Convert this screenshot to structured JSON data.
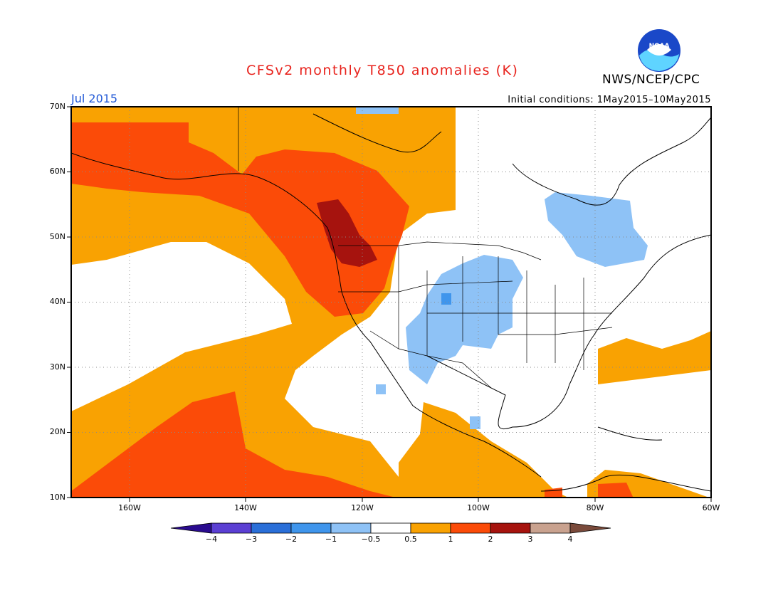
{
  "title": "CFSv2 monthly T850 anomalies (K)",
  "organization": "NWS/NCEP/CPC",
  "valid_period": "Jul 2015",
  "initial_conditions": "Initial conditions: 1May2015–10May2015",
  "logo_text": "NOAA",
  "lat_labels": [
    "70N",
    "60N",
    "50N",
    "40N",
    "30N",
    "20N",
    "10N"
  ],
  "lon_labels": [
    "160W",
    "140W",
    "120W",
    "100W",
    "80W",
    "60W"
  ],
  "colorbar": {
    "ticks": [
      "−4",
      "−3",
      "−2",
      "−1",
      "−0.5",
      "0.5",
      "1",
      "2",
      "3",
      "4"
    ],
    "colors": [
      "#2a0b8f",
      "#5b3fd3",
      "#2a6fd8",
      "#3f95ec",
      "#8ec2f6",
      "#ffffff",
      "#f9a202",
      "#fb4b08",
      "#a6130e",
      "#c9a28f",
      "#7a4a3b"
    ]
  }
}
